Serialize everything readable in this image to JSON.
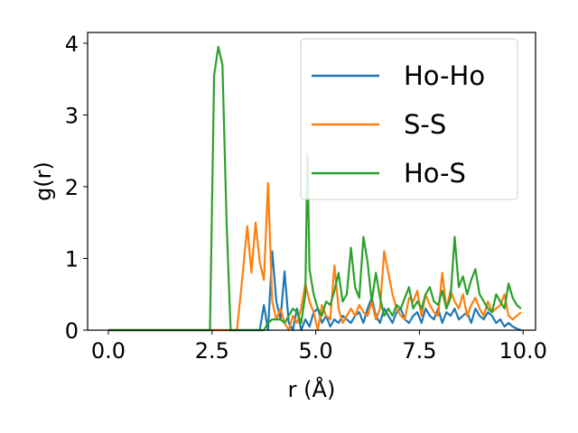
{
  "chart_data": {
    "type": "line",
    "title": "",
    "xlabel": "r (Å)",
    "ylabel": "g(r)",
    "xlim": [
      -0.5,
      10.3
    ],
    "ylim": [
      0,
      4.15
    ],
    "xticks": [
      0.0,
      2.5,
      5.0,
      7.5,
      10.0
    ],
    "xtick_labels": [
      "0.0",
      "2.5",
      "5.0",
      "7.5",
      "10.0"
    ],
    "yticks": [
      0,
      1,
      2,
      3,
      4
    ],
    "ytick_labels": [
      "0",
      "1",
      "2",
      "3",
      "4"
    ],
    "grid": false,
    "legend_position": "top-right",
    "series": [
      {
        "name": "Ho-Ho",
        "color": "#1f77b4",
        "x": [
          0,
          0.5,
          1,
          1.5,
          2,
          2.5,
          3,
          3.5,
          3.65,
          3.75,
          3.85,
          3.95,
          4.05,
          4.15,
          4.25,
          4.35,
          4.45,
          4.55,
          4.65,
          4.75,
          4.85,
          4.95,
          5.05,
          5.15,
          5.25,
          5.35,
          5.45,
          5.55,
          5.65,
          5.75,
          5.85,
          5.95,
          6.05,
          6.15,
          6.25,
          6.35,
          6.45,
          6.55,
          6.65,
          6.75,
          6.85,
          6.95,
          7.05,
          7.15,
          7.25,
          7.35,
          7.45,
          7.55,
          7.65,
          7.75,
          7.85,
          7.95,
          8.05,
          8.15,
          8.25,
          8.35,
          8.45,
          8.55,
          8.65,
          8.75,
          8.85,
          8.95,
          9.05,
          9.15,
          9.25,
          9.35,
          9.45,
          9.55,
          9.65,
          9.75,
          9.85,
          9.95
        ],
        "y": [
          0,
          0,
          0,
          0,
          0,
          0,
          0,
          0,
          0,
          0.35,
          0,
          1.1,
          0.4,
          0.15,
          0.82,
          0.1,
          0,
          0.3,
          0,
          0.15,
          0.05,
          0.25,
          0.3,
          0.1,
          0.2,
          0.05,
          0.15,
          0.1,
          0.2,
          0.15,
          0.1,
          0.2,
          0.25,
          0.1,
          0.3,
          0.45,
          0.2,
          0.1,
          0.3,
          0.2,
          0.1,
          0.25,
          0.3,
          0.15,
          0.1,
          0.2,
          0.25,
          0.1,
          0.3,
          0.2,
          0.15,
          0.3,
          0.1,
          0.25,
          0.2,
          0.3,
          0.15,
          0.2,
          0.25,
          0.1,
          0.3,
          0.2,
          0.15,
          0.25,
          0.2,
          0.1,
          0.15,
          0.05,
          0.1,
          0.05,
          0.02,
          0.0
        ]
      },
      {
        "name": "S-S",
        "color": "#ff7f0e",
        "x": [
          0,
          0.5,
          1,
          1.5,
          2,
          2.5,
          3,
          3.1,
          3.2,
          3.35,
          3.45,
          3.55,
          3.65,
          3.75,
          3.85,
          3.95,
          4.05,
          4.15,
          4.25,
          4.35,
          4.45,
          4.55,
          4.65,
          4.75,
          4.85,
          4.95,
          5.05,
          5.15,
          5.25,
          5.35,
          5.45,
          5.55,
          5.65,
          5.75,
          5.85,
          5.95,
          6.05,
          6.15,
          6.25,
          6.35,
          6.45,
          6.55,
          6.65,
          6.75,
          6.85,
          6.95,
          7.05,
          7.15,
          7.25,
          7.35,
          7.45,
          7.55,
          7.65,
          7.75,
          7.85,
          7.95,
          8.05,
          8.15,
          8.25,
          8.35,
          8.45,
          8.55,
          8.65,
          8.75,
          8.85,
          8.95,
          9.05,
          9.15,
          9.25,
          9.35,
          9.45,
          9.55,
          9.65,
          9.75,
          9.85,
          9.95
        ],
        "y": [
          0,
          0,
          0,
          0,
          0,
          0,
          0,
          0,
          0.55,
          1.45,
          0.8,
          1.5,
          0.95,
          0.7,
          2.05,
          0.4,
          0.15,
          0.3,
          0.1,
          0,
          0.2,
          0.1,
          0.3,
          0.65,
          0.4,
          0.25,
          0,
          0.35,
          0.2,
          0.15,
          0.9,
          0.3,
          0.1,
          0.2,
          0.3,
          0.2,
          0.35,
          0.25,
          0.2,
          0.4,
          0.15,
          0.3,
          1.1,
          0.8,
          0.5,
          0.3,
          0.2,
          0.15,
          0.45,
          0.4,
          0.55,
          0.2,
          0.5,
          0.35,
          0.25,
          0.2,
          0.8,
          0.3,
          0.55,
          0.4,
          0.3,
          0.5,
          0.2,
          0.35,
          0.45,
          0.3,
          0.2,
          0.4,
          0.25,
          0.3,
          0.35,
          0.5,
          0.2,
          0.15,
          0.2,
          0.25
        ]
      },
      {
        "name": "Ho-S",
        "color": "#2ca02c",
        "x": [
          0,
          0.5,
          1,
          1.5,
          2,
          2.45,
          2.55,
          2.65,
          2.75,
          2.85,
          2.95,
          3.05,
          3.15,
          3.25,
          3.35,
          3.45,
          3.55,
          3.65,
          3.75,
          3.85,
          3.95,
          4.05,
          4.15,
          4.25,
          4.35,
          4.45,
          4.55,
          4.65,
          4.75,
          4.8,
          4.85,
          4.95,
          5.05,
          5.15,
          5.25,
          5.35,
          5.45,
          5.55,
          5.65,
          5.75,
          5.85,
          5.95,
          6.05,
          6.15,
          6.25,
          6.35,
          6.45,
          6.55,
          6.65,
          6.75,
          6.85,
          6.95,
          7.05,
          7.15,
          7.25,
          7.35,
          7.45,
          7.55,
          7.65,
          7.75,
          7.85,
          7.95,
          8.05,
          8.15,
          8.25,
          8.35,
          8.45,
          8.55,
          8.65,
          8.75,
          8.85,
          8.95,
          9.05,
          9.15,
          9.25,
          9.35,
          9.45,
          9.55,
          9.65,
          9.75,
          9.85,
          9.95
        ],
        "y": [
          0,
          0,
          0,
          0,
          0,
          0,
          3.55,
          3.95,
          3.7,
          1.5,
          0,
          0,
          0,
          0,
          0,
          0,
          0,
          0,
          0,
          0.1,
          0.15,
          0.15,
          0.15,
          0.1,
          0.2,
          0.3,
          0.25,
          0.1,
          0.5,
          2.45,
          0.85,
          0.5,
          0.3,
          0.2,
          0.4,
          0.35,
          0.55,
          0.8,
          0.4,
          0.5,
          1.15,
          0.6,
          0.45,
          1.3,
          0.95,
          0.4,
          0.8,
          0.45,
          0.2,
          0.3,
          0.2,
          0.35,
          0.3,
          0.45,
          0.6,
          0.3,
          0.4,
          0.3,
          0.5,
          0.6,
          0.4,
          0.35,
          0.55,
          0.3,
          0.45,
          1.3,
          0.6,
          0.75,
          0.5,
          0.7,
          0.85,
          0.5,
          0.4,
          0.3,
          0.25,
          0.5,
          0.4,
          0.3,
          0.65,
          0.45,
          0.35,
          0.3
        ]
      }
    ]
  }
}
